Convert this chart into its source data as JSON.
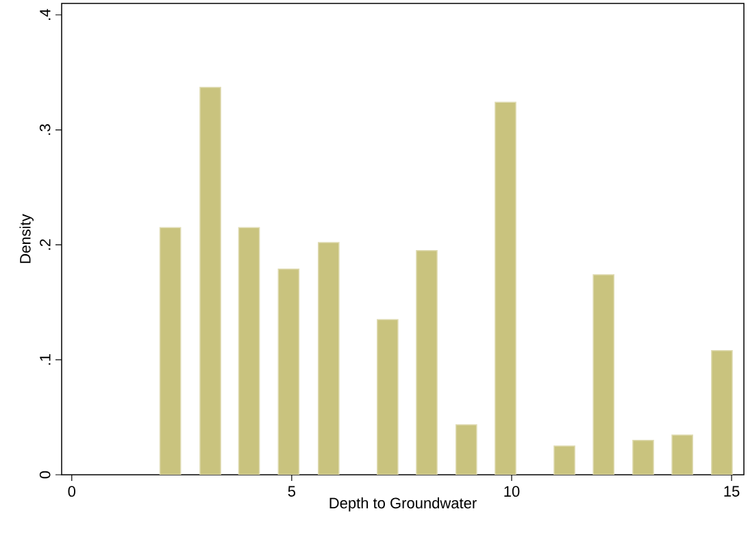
{
  "chart_data": {
    "type": "bar",
    "xlabel": "Depth to Groundwater",
    "ylabel": "Density",
    "x": [
      2.24,
      3.15,
      4.03,
      4.93,
      5.84,
      7.18,
      8.07,
      8.97,
      9.86,
      11.2,
      12.09,
      12.99,
      13.88,
      14.78
    ],
    "values": [
      0.215,
      0.337,
      0.215,
      0.179,
      0.202,
      0.135,
      0.195,
      0.0435,
      0.324,
      0.025,
      0.174,
      0.03,
      0.0346,
      0.108
    ],
    "color": "#c9c37e",
    "xlim": [
      -0.23,
      15.28
    ],
    "ylim": [
      0,
      0.41
    ],
    "xticks": [
      0,
      5,
      10,
      15
    ],
    "yticks": [
      0,
      {
        "value": 0.1,
        "label": ".1"
      },
      {
        "value": 0.2,
        "label": ".2"
      },
      {
        "value": 0.3,
        "label": ".3"
      },
      {
        "value": 0.4,
        "label": ".4"
      }
    ],
    "grid": false
  }
}
